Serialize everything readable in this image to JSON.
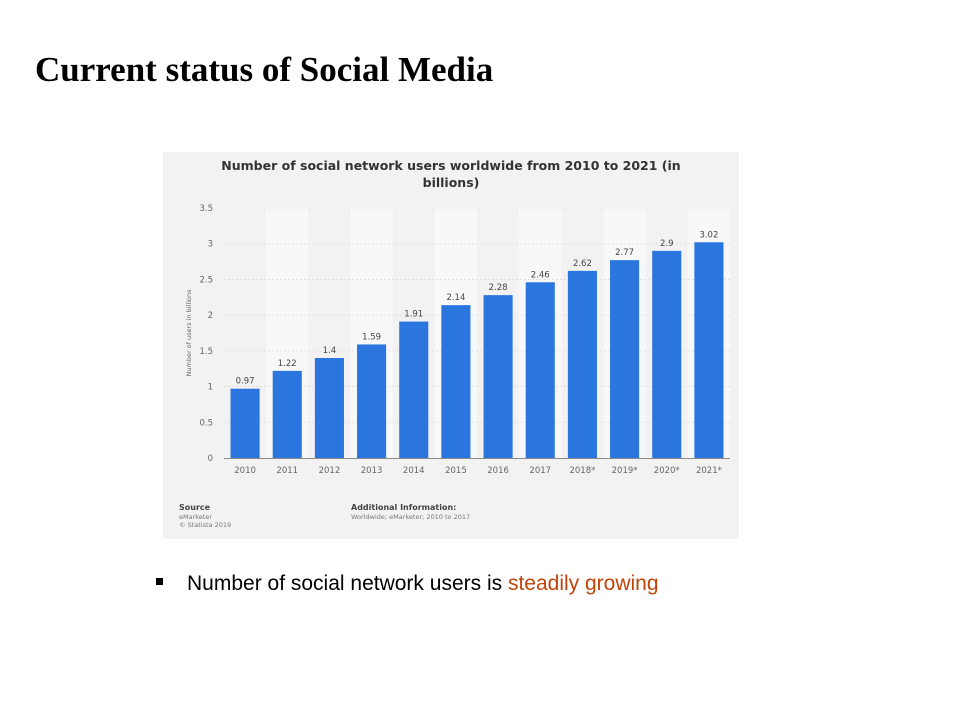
{
  "slide": {
    "title": "Current status of Social Media",
    "bullet_prefix": "Number of social network users is ",
    "bullet_highlight": "steadily growing",
    "highlight_color": "#c0440a"
  },
  "chart_data": {
    "type": "bar",
    "title": "Number of social network users worldwide from 2010 to 2021 (in billions)",
    "xlabel": "",
    "ylabel": "Number of users in billions",
    "categories": [
      "2010",
      "2011",
      "2012",
      "2013",
      "2014",
      "2015",
      "2016",
      "2017",
      "2018*",
      "2019*",
      "2020*",
      "2021*"
    ],
    "values": [
      0.97,
      1.22,
      1.4,
      1.59,
      1.91,
      2.14,
      2.28,
      2.46,
      2.62,
      2.77,
      2.9,
      3.02
    ],
    "value_labels": [
      "0.97",
      "1.22",
      "1.4",
      "1.59",
      "1.91",
      "2.14",
      "2.28",
      "2.46",
      "2.62",
      "2.77",
      "2.9",
      "3.02"
    ],
    "ylim": [
      0,
      3.5
    ],
    "yticks": [
      "0",
      "0.5",
      "1",
      "1.5",
      "2",
      "2.5",
      "3",
      "3.5"
    ],
    "bar_color": "#2a76de",
    "grid": true,
    "source": {
      "heading": "Source",
      "lines": [
        "eMarketer",
        "© Statista 2019"
      ]
    },
    "additional_info": {
      "heading": "Additional Information:",
      "text": "Worldwide; eMarketer; 2010 to 2017"
    }
  }
}
